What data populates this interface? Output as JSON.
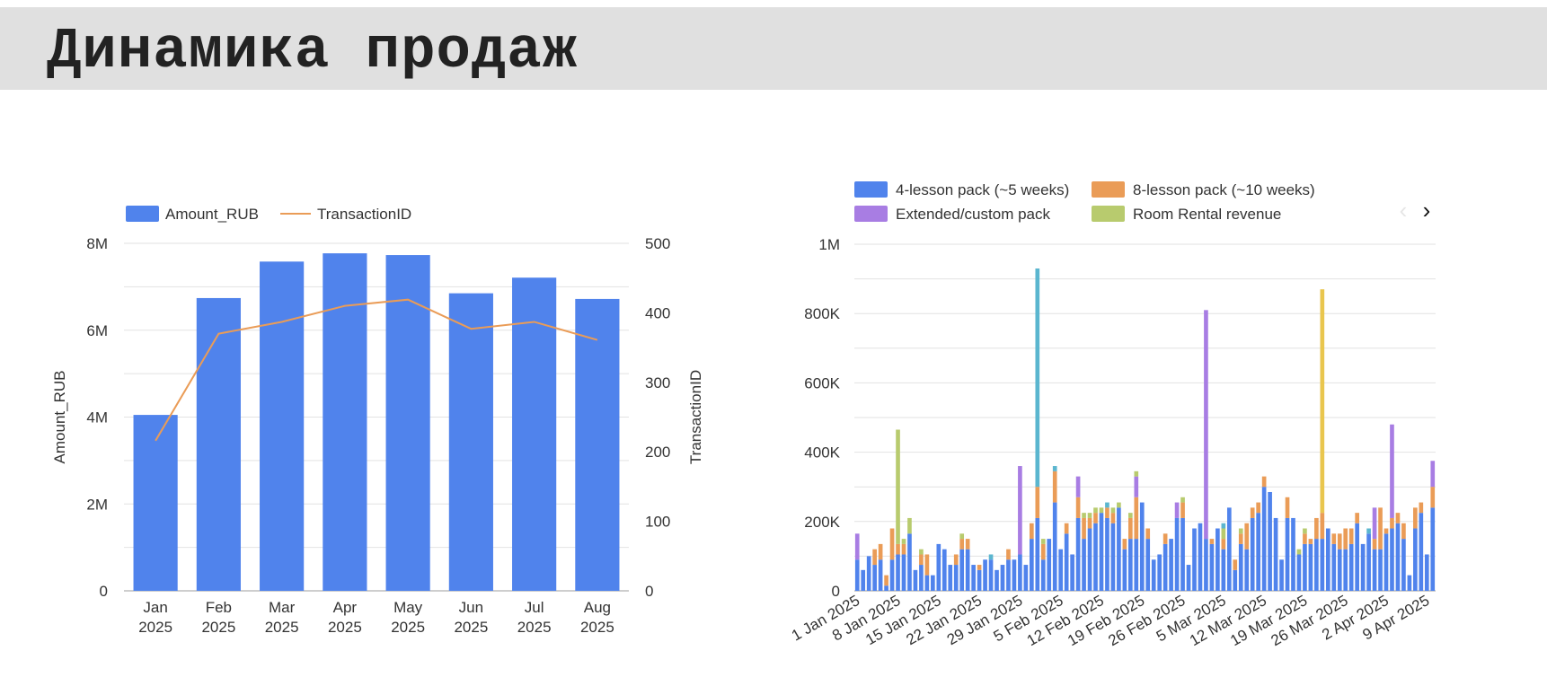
{
  "page": {
    "title": "Динамика продаж"
  },
  "colors": {
    "blue": "#5083ec",
    "orange": "#ea9c57",
    "purple": "#a87de3",
    "olive": "#b8cb6e",
    "teal": "#5bb6cf",
    "yellow": "#e9c64e",
    "grid": "#e0e0e0"
  },
  "chart_data": [
    {
      "type": "bar",
      "combo": "bar+line",
      "categories": [
        "Jan|2025",
        "Feb|2025",
        "Mar|2025",
        "Apr|2025",
        "May|2025",
        "Jun|2025",
        "Jul|2025",
        "Aug|2025"
      ],
      "series": [
        {
          "name": "Amount_RUB",
          "type": "bar",
          "axis": "left",
          "color": "#5083ec",
          "values": [
            4050000,
            6740000,
            7580000,
            7770000,
            7730000,
            6850000,
            7210000,
            6720000
          ]
        },
        {
          "name": "TransactionID",
          "type": "line",
          "axis": "right",
          "color": "#ea9c57",
          "values": [
            216,
            370,
            387,
            410,
            419,
            377,
            387,
            361
          ]
        }
      ],
      "ylabel": "Amount_RUB",
      "y2label": "TransactionID",
      "ylim": [
        0,
        8000000
      ],
      "y2lim": [
        0,
        500
      ],
      "yticks": [
        "0",
        "2M",
        "4M",
        "6M",
        "8M"
      ],
      "y2ticks": [
        "0",
        "100",
        "200",
        "300",
        "400",
        "500"
      ],
      "grid": true,
      "legend": "top-left"
    },
    {
      "type": "bar",
      "stacked": true,
      "legend_entries": [
        {
          "name": "4-lesson pack (~5 weeks)",
          "color": "#5083ec"
        },
        {
          "name": "8-lesson pack (~10 weeks)",
          "color": "#ea9c57"
        },
        {
          "name": "Extended/custom pack",
          "color": "#a87de3"
        },
        {
          "name": "Room Rental revenue",
          "color": "#b8cb6e"
        }
      ],
      "x_tick_labels": [
        "1 Jan 2025",
        "8 Jan 2025",
        "15 Jan 2025",
        "22 Jan 2025",
        "29 Jan 2025",
        "5 Feb 2025",
        "12 Feb 2025",
        "19 Feb 2025",
        "26 Feb 2025",
        "5 Mar 2025",
        "12 Mar 2025",
        "19 Mar 2025",
        "26 Mar 2025",
        "2 Apr 2025",
        "9 Apr 2025"
      ],
      "x_start": "2025-01-01",
      "ylim": [
        0,
        1000000
      ],
      "yticks": [
        "0",
        "200K",
        "400K",
        "600K",
        "800K",
        "1M"
      ],
      "grid": true,
      "legend": "top",
      "series": [
        {
          "name": "4-lesson pack (~5 weeks)",
          "color": "#5083ec",
          "values": [
            90000,
            60000,
            100000,
            75000,
            90000,
            15000,
            90000,
            105000,
            105000,
            165000,
            60000,
            75000,
            45000,
            45000,
            135000,
            120000,
            75000,
            75000,
            120000,
            120000,
            75000,
            60000,
            90000,
            90000,
            60000,
            75000,
            90000,
            90000,
            105000,
            75000,
            150000,
            210000,
            90000,
            150000,
            255000,
            120000,
            165000,
            105000,
            210000,
            150000,
            180000,
            195000,
            225000,
            210000,
            195000,
            240000,
            120000,
            150000,
            150000,
            255000,
            150000,
            90000,
            105000,
            135000,
            150000,
            210000,
            210000,
            75000,
            180000,
            195000,
            150000,
            135000,
            180000,
            120000,
            240000,
            60000,
            135000,
            120000,
            210000,
            225000,
            300000,
            285000,
            210000,
            90000,
            210000,
            210000,
            105000,
            135000,
            135000,
            150000,
            150000,
            180000,
            135000,
            120000,
            120000,
            135000,
            195000,
            135000,
            165000,
            120000,
            120000,
            165000,
            180000,
            195000,
            150000,
            45000,
            180000,
            225000,
            105000,
            240000
          ]
        },
        {
          "name": "8-lesson pack (~10 weeks)",
          "color": "#ea9c57",
          "values": [
            0,
            0,
            0,
            45000,
            45000,
            30000,
            90000,
            30000,
            30000,
            0,
            0,
            30000,
            60000,
            0,
            0,
            0,
            0,
            30000,
            30000,
            30000,
            0,
            15000,
            0,
            0,
            0,
            0,
            30000,
            0,
            0,
            0,
            45000,
            90000,
            45000,
            0,
            90000,
            0,
            30000,
            0,
            60000,
            60000,
            30000,
            30000,
            0,
            30000,
            30000,
            0,
            30000,
            60000,
            120000,
            0,
            30000,
            0,
            0,
            30000,
            0,
            0,
            45000,
            0,
            0,
            0,
            0,
            15000,
            0,
            30000,
            0,
            30000,
            30000,
            75000,
            30000,
            30000,
            30000,
            0,
            0,
            0,
            60000,
            0,
            0,
            30000,
            15000,
            60000,
            75000,
            0,
            30000,
            45000,
            60000,
            45000,
            30000,
            0,
            0,
            30000,
            120000,
            15000,
            30000,
            30000,
            45000,
            0,
            60000,
            30000,
            0,
            60000
          ]
        },
        {
          "name": "Extended/custom pack",
          "color": "#a87de3",
          "values": [
            75000,
            0,
            0,
            0,
            0,
            0,
            0,
            0,
            0,
            0,
            0,
            0,
            0,
            0,
            0,
            0,
            0,
            0,
            0,
            0,
            0,
            0,
            0,
            0,
            0,
            0,
            0,
            0,
            255000,
            0,
            0,
            0,
            0,
            0,
            0,
            0,
            0,
            0,
            60000,
            0,
            0,
            0,
            0,
            0,
            0,
            0,
            0,
            0,
            60000,
            0,
            0,
            0,
            0,
            0,
            0,
            45000,
            0,
            0,
            0,
            0,
            660000,
            0,
            0,
            0,
            0,
            0,
            0,
            0,
            0,
            0,
            0,
            0,
            0,
            0,
            0,
            0,
            0,
            0,
            0,
            0,
            0,
            0,
            0,
            0,
            0,
            0,
            0,
            0,
            0,
            90000,
            0,
            0,
            270000,
            0,
            0,
            0,
            0,
            0,
            0,
            75000
          ]
        },
        {
          "name": "Room Rental revenue",
          "color": "#b8cb6e",
          "values": [
            0,
            0,
            0,
            0,
            0,
            0,
            0,
            330000,
            15000,
            45000,
            0,
            15000,
            0,
            0,
            0,
            0,
            0,
            0,
            15000,
            0,
            0,
            0,
            0,
            0,
            0,
            0,
            0,
            0,
            0,
            0,
            0,
            0,
            15000,
            0,
            0,
            0,
            0,
            0,
            0,
            15000,
            15000,
            15000,
            15000,
            0,
            15000,
            15000,
            0,
            15000,
            15000,
            0,
            0,
            0,
            0,
            0,
            0,
            0,
            15000,
            0,
            0,
            0,
            0,
            0,
            0,
            30000,
            0,
            0,
            15000,
            0,
            0,
            0,
            0,
            0,
            0,
            0,
            0,
            0,
            15000,
            15000,
            0,
            0,
            0,
            0,
            0,
            0,
            0,
            0,
            0,
            0,
            0,
            0,
            0,
            0,
            0,
            0,
            0,
            0,
            0,
            0,
            0,
            0
          ]
        },
        {
          "name": "",
          "color": "#5bb6cf",
          "values": [
            0,
            0,
            0,
            0,
            0,
            0,
            0,
            0,
            0,
            0,
            0,
            0,
            0,
            0,
            0,
            0,
            0,
            0,
            0,
            0,
            0,
            0,
            0,
            15000,
            0,
            0,
            0,
            0,
            0,
            0,
            0,
            630000,
            0,
            0,
            15000,
            0,
            0,
            0,
            0,
            0,
            0,
            0,
            0,
            15000,
            0,
            0,
            0,
            0,
            0,
            0,
            0,
            0,
            0,
            0,
            0,
            0,
            0,
            0,
            0,
            0,
            0,
            0,
            0,
            15000,
            0,
            0,
            0,
            0,
            0,
            0,
            0,
            0,
            0,
            0,
            0,
            0,
            0,
            0,
            0,
            0,
            0,
            0,
            0,
            0,
            0,
            0,
            0,
            0,
            15000,
            0,
            0,
            0,
            0,
            0,
            0,
            0,
            0,
            0,
            0,
            0
          ]
        },
        {
          "name": "",
          "color": "#e9c64e",
          "values": [
            0,
            0,
            0,
            0,
            0,
            0,
            0,
            0,
            0,
            0,
            0,
            0,
            0,
            0,
            0,
            0,
            0,
            0,
            0,
            0,
            0,
            0,
            0,
            0,
            0,
            0,
            0,
            0,
            0,
            0,
            0,
            0,
            0,
            0,
            0,
            0,
            0,
            0,
            0,
            0,
            0,
            0,
            0,
            0,
            0,
            0,
            0,
            0,
            0,
            0,
            0,
            0,
            0,
            0,
            0,
            0,
            0,
            0,
            0,
            0,
            0,
            0,
            0,
            0,
            0,
            0,
            0,
            0,
            0,
            0,
            0,
            0,
            0,
            0,
            0,
            0,
            0,
            0,
            0,
            0,
            645000,
            0,
            0,
            0,
            0,
            0,
            0,
            0,
            0,
            0,
            0,
            0,
            0,
            0,
            0,
            0,
            0,
            0,
            0,
            0
          ]
        }
      ]
    }
  ]
}
